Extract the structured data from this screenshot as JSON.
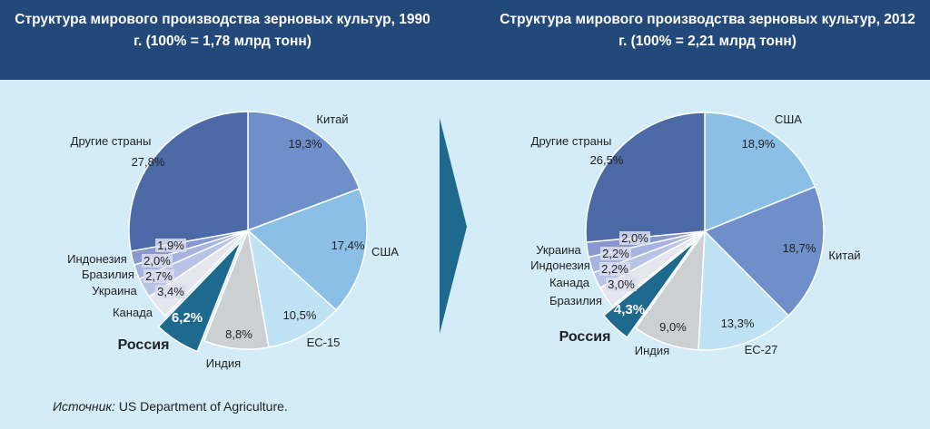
{
  "source": {
    "label": "Источник:",
    "text": "US Department of Agriculture."
  },
  "colors": {
    "header": "#23487a",
    "background": "#d3ecf8",
    "russia": "#1e6a8e",
    "arrow": "#1e6a8e"
  },
  "chart_data": [
    {
      "type": "pie",
      "title": "Структура мирового производства зерновых культур, 1990 г. (100% = 1,78 млрд тонн)",
      "slices": [
        {
          "name": "Китай",
          "value": 19.3,
          "label": "19,3%",
          "color": "#6e8fc9"
        },
        {
          "name": "США",
          "value": 17.4,
          "label": "17,4%",
          "color": "#8cbfe6"
        },
        {
          "name": "ЕС-15",
          "value": 10.5,
          "label": "10,5%",
          "color": "#bfe3f4"
        },
        {
          "name": "Индия",
          "value": 8.8,
          "label": "8,8%",
          "color": "#cdd0d3"
        },
        {
          "name": "Россия",
          "value": 6.2,
          "label": "6,2%",
          "color": "#1e6a8e",
          "highlight": true
        },
        {
          "name": "Канада",
          "value": 3.4,
          "label": "3,4%",
          "color": "#e6e6ee"
        },
        {
          "name": "Украина",
          "value": 2.7,
          "label": "2,7%",
          "color": "#b8c3e6"
        },
        {
          "name": "Бразилия",
          "value": 2.0,
          "label": "2,0%",
          "color": "#a6b4df"
        },
        {
          "name": "Индонезия",
          "value": 1.9,
          "label": "1,9%",
          "color": "#8897ce"
        },
        {
          "name": "Другие страны",
          "value": 27.8,
          "label": "27,8%",
          "color": "#4c6aa6"
        }
      ]
    },
    {
      "type": "pie",
      "title": "Структура мирового производства зерновых культур, 2012 г. (100% = 2,21 млрд тонн)",
      "slices": [
        {
          "name": "США",
          "value": 18.9,
          "label": "18,9%",
          "color": "#8cbfe6"
        },
        {
          "name": "Китай",
          "value": 18.7,
          "label": "18,7%",
          "color": "#6e8fc9"
        },
        {
          "name": "ЕС-27",
          "value": 13.3,
          "label": "13,3%",
          "color": "#bfe3f4"
        },
        {
          "name": "Индия",
          "value": 9.0,
          "label": "9,0%",
          "color": "#cdd0d3"
        },
        {
          "name": "Россия",
          "value": 4.3,
          "label": "4,3%",
          "color": "#1e6a8e",
          "highlight": true
        },
        {
          "name": "Бразилия",
          "value": 3.0,
          "label": "3,0%",
          "color": "#e6e6ee"
        },
        {
          "name": "Канада",
          "value": 2.2,
          "label": "2,2%",
          "color": "#b8c3e6"
        },
        {
          "name": "Индонезия",
          "value": 2.2,
          "label": "2,2%",
          "color": "#a6b4df"
        },
        {
          "name": "Украина",
          "value": 2.0,
          "label": "2,0%",
          "color": "#8897ce"
        },
        {
          "name": "Другие страны",
          "value": 26.5,
          "label": "26,5%",
          "color": "#4c6aa6"
        }
      ]
    }
  ]
}
